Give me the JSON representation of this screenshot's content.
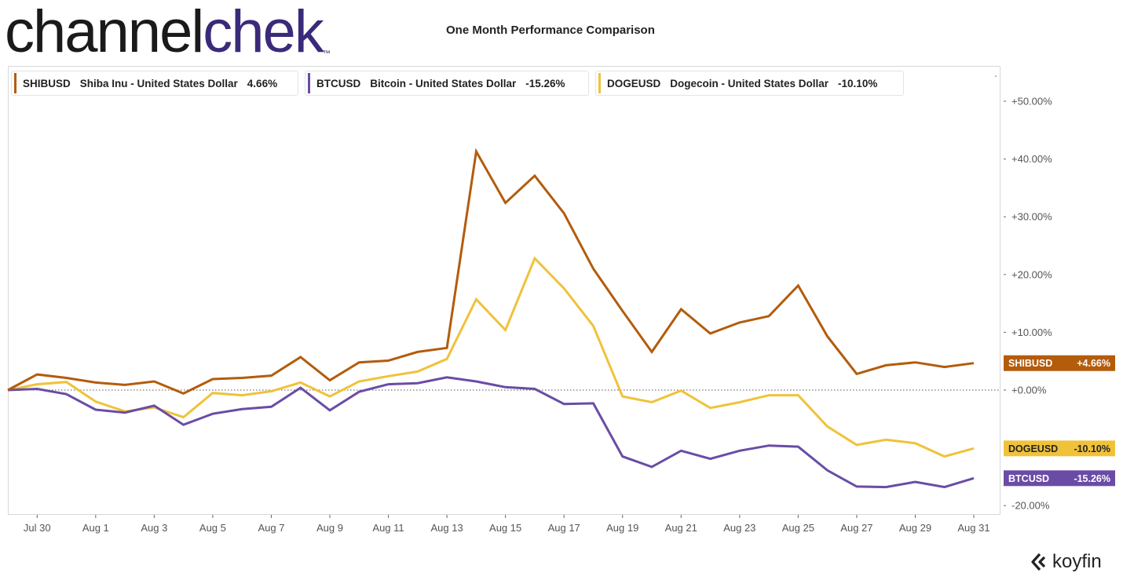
{
  "header": {
    "logo_part1": "channel",
    "logo_part2": "chek",
    "logo_tm": "™",
    "title": "One Month Performance Comparison"
  },
  "brand": {
    "name": "koyfin",
    "icon": "koyfin-logo-icon"
  },
  "colors": {
    "SHIBUSD": "#b35c0c",
    "BTCUSD": "#6a4ca6",
    "DOGEUSD": "#f0c23a"
  },
  "legend": [
    {
      "symbol": "SHIBUSD",
      "name": "Shiba Inu - United States Dollar",
      "pct": "4.66%"
    },
    {
      "symbol": "BTCUSD",
      "name": "Bitcoin - United States Dollar",
      "pct": "-15.26%"
    },
    {
      "symbol": "DOGEUSD",
      "name": "Dogecoin - United States Dollar",
      "pct": "-10.10%"
    }
  ],
  "chart_data": {
    "type": "line",
    "title": "One Month Performance Comparison",
    "x": [
      "Jul 29",
      "Jul 30",
      "Jul 31",
      "Aug 1",
      "Aug 2",
      "Aug 3",
      "Aug 4",
      "Aug 5",
      "Aug 6",
      "Aug 7",
      "Aug 8",
      "Aug 9",
      "Aug 10",
      "Aug 11",
      "Aug 12",
      "Aug 13",
      "Aug 14",
      "Aug 15",
      "Aug 16",
      "Aug 17",
      "Aug 18",
      "Aug 19",
      "Aug 20",
      "Aug 21",
      "Aug 22",
      "Aug 23",
      "Aug 24",
      "Aug 25",
      "Aug 26",
      "Aug 27",
      "Aug 28",
      "Aug 29",
      "Aug 30",
      "Aug 31"
    ],
    "x_tick_labels": [
      "Jul 30",
      "Aug 1",
      "Aug 3",
      "Aug 5",
      "Aug 7",
      "Aug 9",
      "Aug 11",
      "Aug 13",
      "Aug 15",
      "Aug 17",
      "Aug 19",
      "Aug 21",
      "Aug 23",
      "Aug 25",
      "Aug 27",
      "Aug 29",
      "Aug 31"
    ],
    "y_tick_labels": [
      "+50.00%",
      "+40.00%",
      "+30.00%",
      "+20.00%",
      "+10.00%",
      "+0.00%",
      "-20.00%"
    ],
    "y_ticks": [
      50,
      40,
      30,
      20,
      10,
      0,
      -20
    ],
    "ylim": [
      -21.5,
      56
    ],
    "y_unit": "%",
    "zero_line": true,
    "series": [
      {
        "name": "SHIBUSD",
        "end_label": "+4.66%",
        "values": [
          0,
          2.7,
          2.1,
          1.3,
          0.9,
          1.5,
          -0.6,
          1.9,
          2.1,
          2.5,
          5.7,
          1.7,
          4.8,
          5.1,
          6.6,
          7.3,
          41.3,
          32.4,
          37.1,
          30.6,
          21.0,
          13.7,
          6.6,
          14.0,
          9.8,
          11.7,
          12.8,
          18.1,
          9.3,
          2.8,
          4.3,
          4.8,
          4.0,
          4.66
        ]
      },
      {
        "name": "BTCUSD",
        "end_label": "-15.26%",
        "values": [
          0,
          0.2,
          -0.7,
          -3.4,
          -3.9,
          -2.7,
          -6.0,
          -4.1,
          -3.3,
          -2.9,
          0.4,
          -3.5,
          -0.3,
          1.0,
          1.2,
          2.2,
          1.5,
          0.5,
          0.2,
          -2.4,
          -2.3,
          -11.5,
          -13.3,
          -10.5,
          -11.9,
          -10.5,
          -9.6,
          -9.8,
          -13.9,
          -16.7,
          -16.8,
          -15.9,
          -16.8,
          -15.26
        ]
      },
      {
        "name": "DOGEUSD",
        "end_label": "-10.10%",
        "values": [
          0,
          1.0,
          1.4,
          -2.0,
          -3.7,
          -3.0,
          -4.7,
          -0.5,
          -0.9,
          -0.2,
          1.3,
          -1.1,
          1.5,
          2.4,
          3.2,
          5.4,
          15.7,
          10.4,
          22.8,
          17.6,
          11.1,
          -1.1,
          -2.1,
          -0.1,
          -3.1,
          -2.1,
          -0.9,
          -0.9,
          -6.3,
          -9.5,
          -8.6,
          -9.2,
          -11.5,
          -10.1
        ]
      }
    ]
  }
}
